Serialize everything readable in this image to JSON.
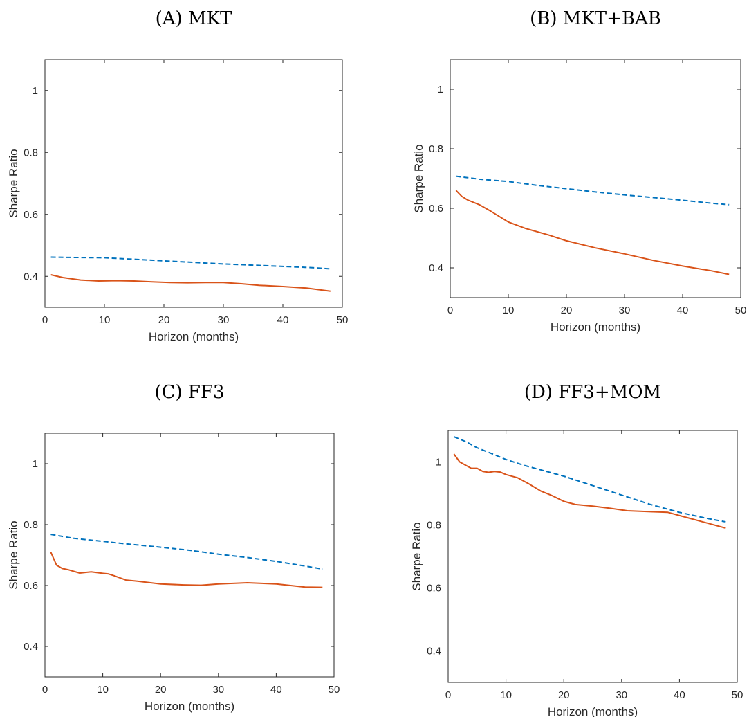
{
  "chart_data": [
    {
      "type": "line",
      "title": "(A) MKT",
      "xlabel": "Horizon (months)",
      "ylabel": "Sharpe Ratio",
      "xlim": [
        0,
        50
      ],
      "ylim": [
        0.3,
        1.1
      ],
      "xticks": [
        0,
        10,
        20,
        30,
        40,
        50
      ],
      "yticks": [
        0.4,
        0.6,
        0.8,
        1
      ],
      "grid": false,
      "series": [
        {
          "color": "#0072BD",
          "style": "dashed",
          "x": [
            1,
            5,
            10,
            15,
            20,
            25,
            30,
            35,
            40,
            45,
            48
          ],
          "y": [
            0.462,
            0.461,
            0.46,
            0.455,
            0.45,
            0.445,
            0.44,
            0.436,
            0.432,
            0.428,
            0.424
          ]
        },
        {
          "color": "#D95319",
          "style": "solid",
          "x": [
            1,
            3,
            6,
            9,
            12,
            15,
            18,
            21,
            24,
            27,
            30,
            33,
            36,
            40,
            44,
            48
          ],
          "y": [
            0.405,
            0.396,
            0.388,
            0.385,
            0.386,
            0.385,
            0.382,
            0.38,
            0.379,
            0.38,
            0.38,
            0.376,
            0.371,
            0.367,
            0.362,
            0.352
          ]
        }
      ]
    },
    {
      "type": "line",
      "title": "(B) MKT+BAB",
      "xlabel": "Horizon (months)",
      "ylabel": "Sharpe Ratio",
      "xlim": [
        0,
        50
      ],
      "ylim": [
        0.3,
        1.1
      ],
      "xticks": [
        0,
        10,
        20,
        30,
        40,
        50
      ],
      "yticks": [
        0.4,
        0.6,
        0.8,
        1
      ],
      "grid": false,
      "series": [
        {
          "color": "#0072BD",
          "style": "dashed",
          "x": [
            1,
            5,
            10,
            15,
            20,
            25,
            30,
            35,
            40,
            45,
            48
          ],
          "y": [
            0.708,
            0.698,
            0.69,
            0.677,
            0.666,
            0.655,
            0.645,
            0.636,
            0.627,
            0.617,
            0.612
          ]
        },
        {
          "color": "#D95319",
          "style": "solid",
          "x": [
            1,
            2,
            3,
            5,
            7,
            10,
            13,
            17,
            20,
            25,
            30,
            35,
            40,
            45,
            48
          ],
          "y": [
            0.66,
            0.64,
            0.628,
            0.612,
            0.59,
            0.554,
            0.532,
            0.51,
            0.491,
            0.467,
            0.447,
            0.425,
            0.406,
            0.39,
            0.378
          ]
        }
      ]
    },
    {
      "type": "line",
      "title": "(C) FF3",
      "xlabel": "Horizon (months)",
      "ylabel": "Sharpe Ratio",
      "xlim": [
        0,
        50
      ],
      "ylim": [
        0.3,
        1.1
      ],
      "xticks": [
        0,
        10,
        20,
        30,
        40,
        50
      ],
      "yticks": [
        0.4,
        0.6,
        0.8,
        1
      ],
      "grid": false,
      "series": [
        {
          "color": "#0072BD",
          "style": "dashed",
          "x": [
            1,
            5,
            10,
            15,
            20,
            25,
            30,
            35,
            40,
            45,
            48
          ],
          "y": [
            0.768,
            0.755,
            0.745,
            0.735,
            0.726,
            0.716,
            0.703,
            0.692,
            0.679,
            0.664,
            0.654
          ]
        },
        {
          "color": "#D95319",
          "style": "solid",
          "x": [
            1,
            2,
            3,
            4,
            6,
            8,
            10,
            11,
            12,
            14,
            16,
            20,
            24,
            27,
            30,
            35,
            40,
            45,
            48
          ],
          "y": [
            0.71,
            0.667,
            0.656,
            0.652,
            0.641,
            0.645,
            0.64,
            0.638,
            0.632,
            0.618,
            0.614,
            0.605,
            0.602,
            0.601,
            0.605,
            0.609,
            0.605,
            0.595,
            0.594
          ]
        }
      ]
    },
    {
      "type": "line",
      "title": "(D) FF3+MOM",
      "xlabel": "Horizon (months)",
      "ylabel": "Sharpe Ratio",
      "xlim": [
        0,
        50
      ],
      "ylim": [
        0.3,
        1.1
      ],
      "xticks": [
        0,
        10,
        20,
        30,
        40,
        50
      ],
      "yticks": [
        0.4,
        0.6,
        0.8,
        1
      ],
      "grid": false,
      "series": [
        {
          "color": "#0072BD",
          "style": "dashed",
          "x": [
            1,
            3,
            5,
            8,
            10,
            13,
            15,
            20,
            25,
            30,
            35,
            40,
            45,
            48
          ],
          "y": [
            1.08,
            1.065,
            1.045,
            1.023,
            1.008,
            0.99,
            0.98,
            0.955,
            0.925,
            0.895,
            0.865,
            0.84,
            0.82,
            0.81
          ]
        },
        {
          "color": "#D95319",
          "style": "solid",
          "x": [
            1,
            2,
            3,
            4,
            5,
            6,
            7,
            8,
            9,
            10,
            12,
            14,
            16,
            18,
            20,
            22,
            25,
            28,
            31,
            35,
            38,
            42,
            45,
            48
          ],
          "y": [
            1.025,
            1.0,
            0.99,
            0.98,
            0.98,
            0.97,
            0.967,
            0.97,
            0.968,
            0.96,
            0.95,
            0.93,
            0.908,
            0.893,
            0.875,
            0.865,
            0.86,
            0.853,
            0.845,
            0.842,
            0.84,
            0.82,
            0.805,
            0.79
          ]
        }
      ]
    }
  ]
}
